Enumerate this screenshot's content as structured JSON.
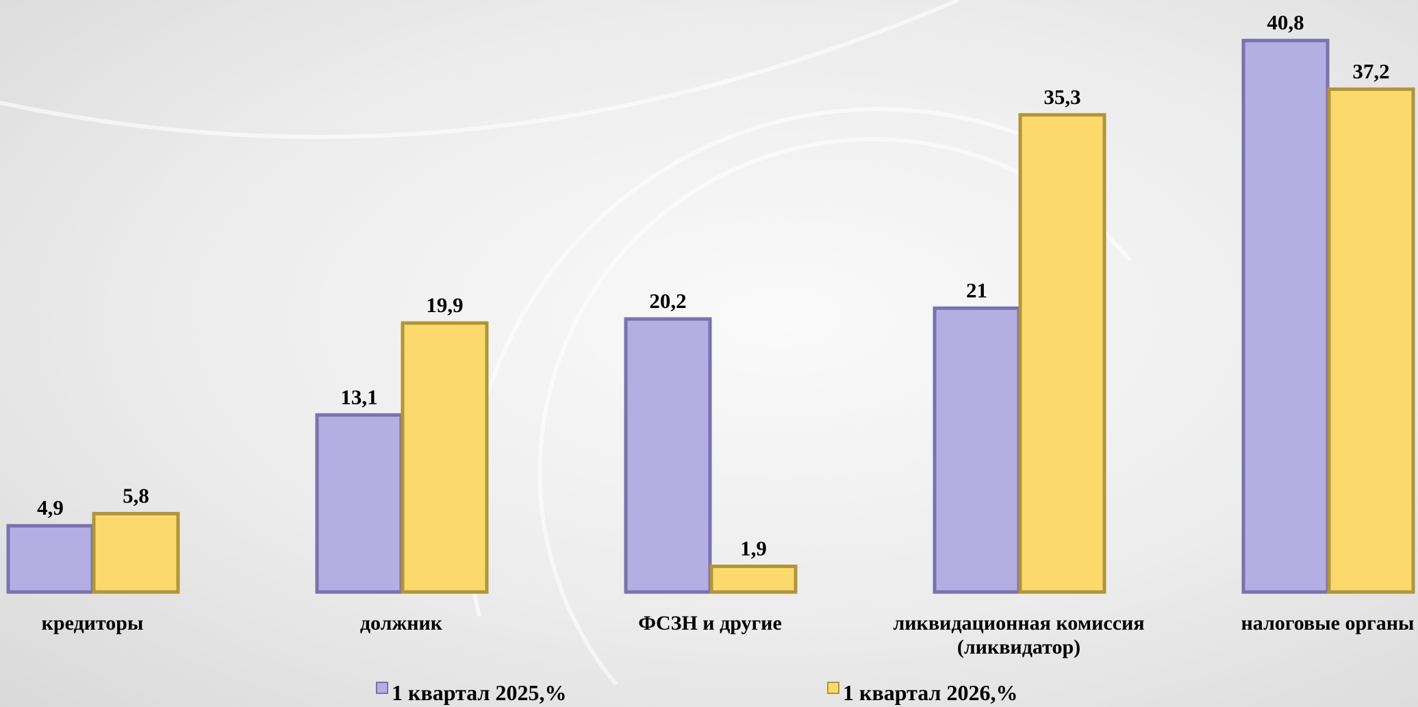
{
  "chart_data": {
    "type": "bar",
    "categories": [
      "кредиторы",
      "должник",
      "ФСЗН и другие",
      "ликвидационная комиссия\n(ликвидатор)",
      "налоговые органы"
    ],
    "series": [
      {
        "name": "1 квартал 2025,%",
        "color": "#b4aee2",
        "values": [
          4.9,
          13.1,
          20.2,
          21,
          40.8
        ],
        "value_labels": [
          "4,9",
          "13,1",
          "20,2",
          "21",
          "40,8"
        ]
      },
      {
        "name": "1 квартал 2026,%",
        "color": "#fbd96c",
        "values": [
          5.8,
          19.9,
          1.9,
          35.3,
          37.2
        ],
        "value_labels": [
          "5,8",
          "19,9",
          "1,9",
          "35,3",
          "37,2"
        ]
      }
    ]
  }
}
